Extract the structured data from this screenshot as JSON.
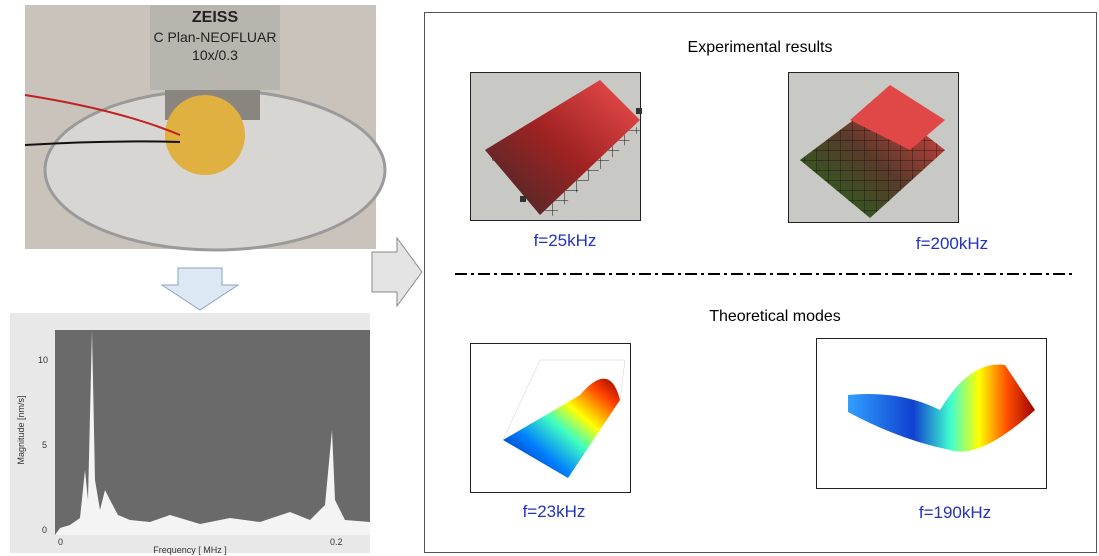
{
  "photo": {
    "lens_text": [
      "ZEISS",
      "C Plan-NEOFLUAR",
      "10x/0.3"
    ]
  },
  "spectrum": {
    "y_label": "Magnitude [nm/s]",
    "x_label": "Frequency [ MHz ]",
    "y_ticks": [
      "10",
      "5",
      "0"
    ],
    "x_ticks": [
      "0",
      "0.2"
    ]
  },
  "panel": {
    "experimental_title": "Experimental results",
    "theoretical_title": "Theoretical modes",
    "experimental": [
      {
        "label": "f=25kHz"
      },
      {
        "label": "f=200kHz"
      }
    ],
    "theoretical": [
      {
        "label": "f=23kHz"
      },
      {
        "label": "f=190kHz"
      }
    ]
  }
}
